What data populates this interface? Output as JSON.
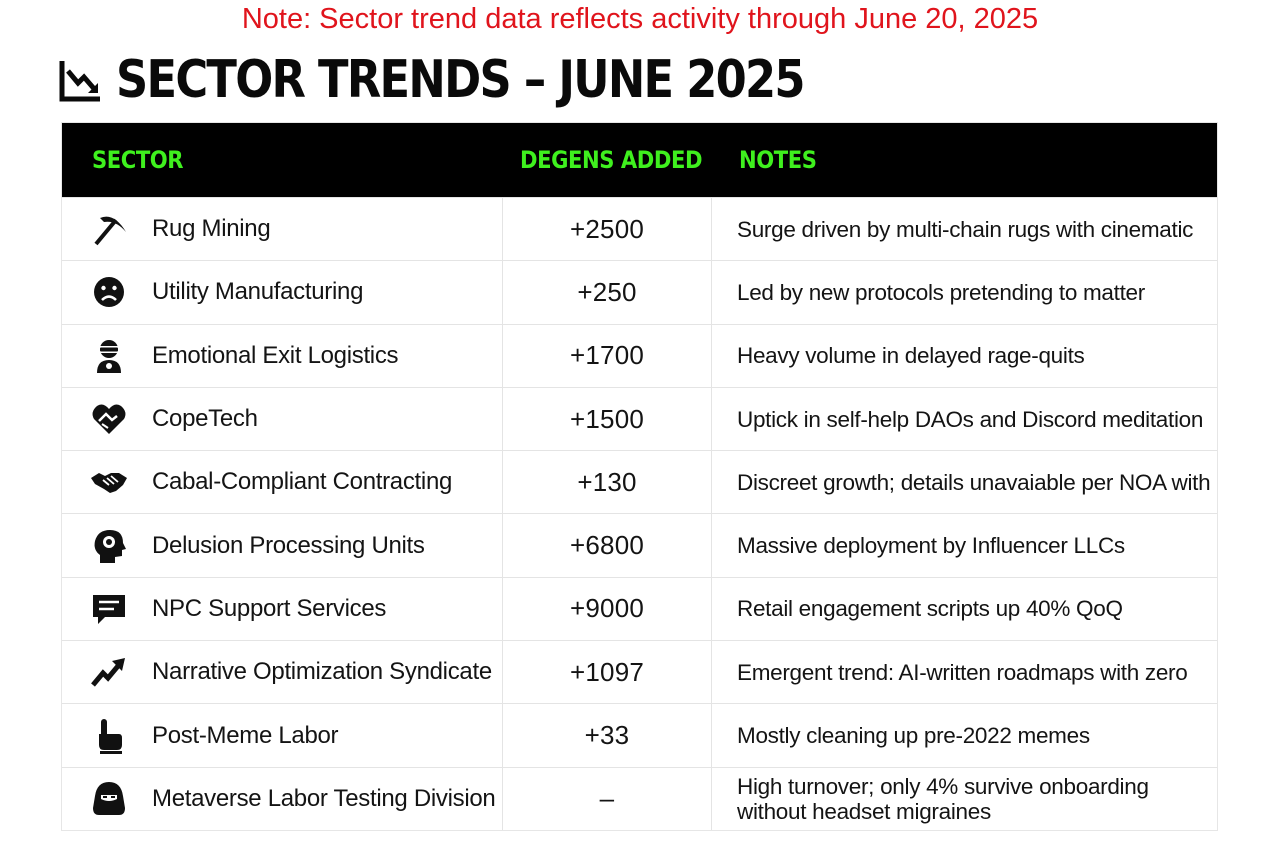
{
  "note": "Note: Sector trend data reflects activity through June 20, 2025",
  "title": "SECTOR TRENDS – JUNE 2025",
  "title_icon": "chart-down-icon",
  "header_color": "#3ff01e",
  "note_color": "#e0141c",
  "columns": [
    "SECTOR",
    "DEGENS ADDED",
    "NOTES"
  ],
  "rows": [
    {
      "icon": "pickaxe-icon",
      "sector": "Rug Mining",
      "degens": "+2500",
      "notes": "Surge driven by multi-chain rugs with cinematic"
    },
    {
      "icon": "sad-face-icon",
      "sector": "Utility Manufacturing",
      "degens": "+250",
      "notes": "Led by new protocols pretending to matter"
    },
    {
      "icon": "vr-headset-person-icon",
      "sector": "Emotional Exit Logistics",
      "degens": "+1700",
      "notes": "Heavy volume in delayed rage-quits"
    },
    {
      "icon": "handshake-heart-icon",
      "sector": "CopeTech",
      "degens": "+1500",
      "notes": "Uptick in self-help DAOs and Discord meditation"
    },
    {
      "icon": "handshake-icon",
      "sector": "Cabal-Compliant Contracting",
      "degens": "+130",
      "notes": "Discreet growth; details unavaiable per NOA with"
    },
    {
      "icon": "head-brain-icon",
      "sector": "Delusion Processing Units",
      "degens": "+6800",
      "notes": "Massive deployment by Influencer LLCs"
    },
    {
      "icon": "chat-bubble-icon",
      "sector": "NPC Support Services",
      "degens": "+9000",
      "notes": "Retail engagement scripts up 40% QoQ"
    },
    {
      "icon": "trend-up-arrow-icon",
      "sector": "Narrative Optimization Syndicate",
      "degens": "+1097",
      "notes": "Emergent trend: AI-written roadmaps with zero"
    },
    {
      "icon": "pointing-hand-icon",
      "sector": "Post-Meme Labor",
      "degens": "+33",
      "notes": "Mostly cleaning up pre-2022 memes"
    },
    {
      "icon": "hooded-figure-icon",
      "sector": "Metaverse Labor Testing Division",
      "degens": "–",
      "notes": "High turnover; only 4% survive onboarding without headset migraines"
    }
  ]
}
